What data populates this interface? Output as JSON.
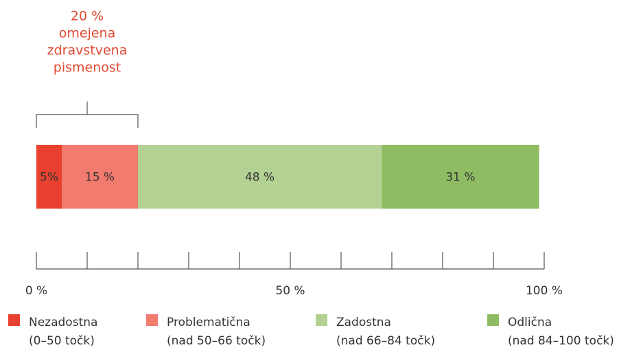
{
  "chart_data": {
    "type": "stacked-bar-horizontal",
    "series": [
      {
        "name": "Nezadostna",
        "description": "(0–50 točk)",
        "color": "#e8412f",
        "values": [
          5
        ],
        "value_labels": [
          "5%"
        ]
      },
      {
        "name": "Problematična",
        "description": "(nad 50–66 točk)",
        "color": "#f07b6e",
        "values": [
          15
        ],
        "value_labels": [
          "15 %"
        ]
      },
      {
        "name": "Zadostna",
        "description": "(nad 66–84 točk)",
        "color": "#b3d193",
        "values": [
          48
        ],
        "value_labels": [
          "48 %"
        ]
      },
      {
        "name": "Odlična",
        "description": "(nad 84–100 točk)",
        "color": "#8fbc62",
        "values": [
          31
        ],
        "value_labels": [
          "31 %"
        ]
      }
    ],
    "xlim": [
      0,
      100
    ],
    "xticks": [
      {
        "value": 0,
        "label": "0 %"
      },
      {
        "value": 50,
        "label": "50 %"
      },
      {
        "value": 100,
        "label": "100 %"
      }
    ],
    "minor_xticks": [
      0,
      10,
      20,
      30,
      40,
      50,
      60,
      70,
      80,
      90,
      100
    ],
    "annotation": {
      "lines": [
        "20 %",
        "omejena",
        "zdravstvena",
        "pismenost"
      ],
      "color": "#e24a33",
      "bracket": [
        0,
        20
      ]
    }
  }
}
